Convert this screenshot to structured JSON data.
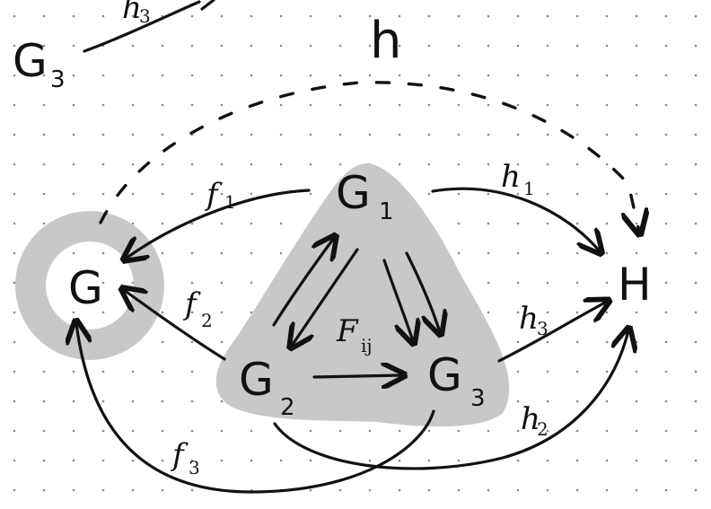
{
  "colors": {
    "ink": "#111111",
    "highlight": "#c8c8c8",
    "paper": "#ffffff",
    "dot_grid": "#8a8a8a"
  },
  "nodes": {
    "G": {
      "main": "G",
      "sub": ""
    },
    "G1": {
      "main": "G",
      "sub": "1"
    },
    "G2": {
      "main": "G",
      "sub": "2"
    },
    "G3": {
      "main": "G",
      "sub": "3"
    },
    "H": {
      "main": "H",
      "sub": ""
    },
    "G3_top": {
      "main": "G",
      "sub": "3"
    }
  },
  "edges": {
    "f1": {
      "main": "f",
      "sub": "1"
    },
    "f2": {
      "main": "f",
      "sub": "2"
    },
    "f3": {
      "main": "f",
      "sub": "3"
    },
    "h1": {
      "main": "h",
      "sub": "1"
    },
    "h2": {
      "main": "h",
      "sub": "2"
    },
    "h3": {
      "main": "h",
      "sub": "3"
    },
    "Fij": {
      "main": "F",
      "sub": "ij"
    },
    "h": {
      "main": "h"
    },
    "h3_top": {
      "main": "h",
      "sub": "3"
    }
  }
}
